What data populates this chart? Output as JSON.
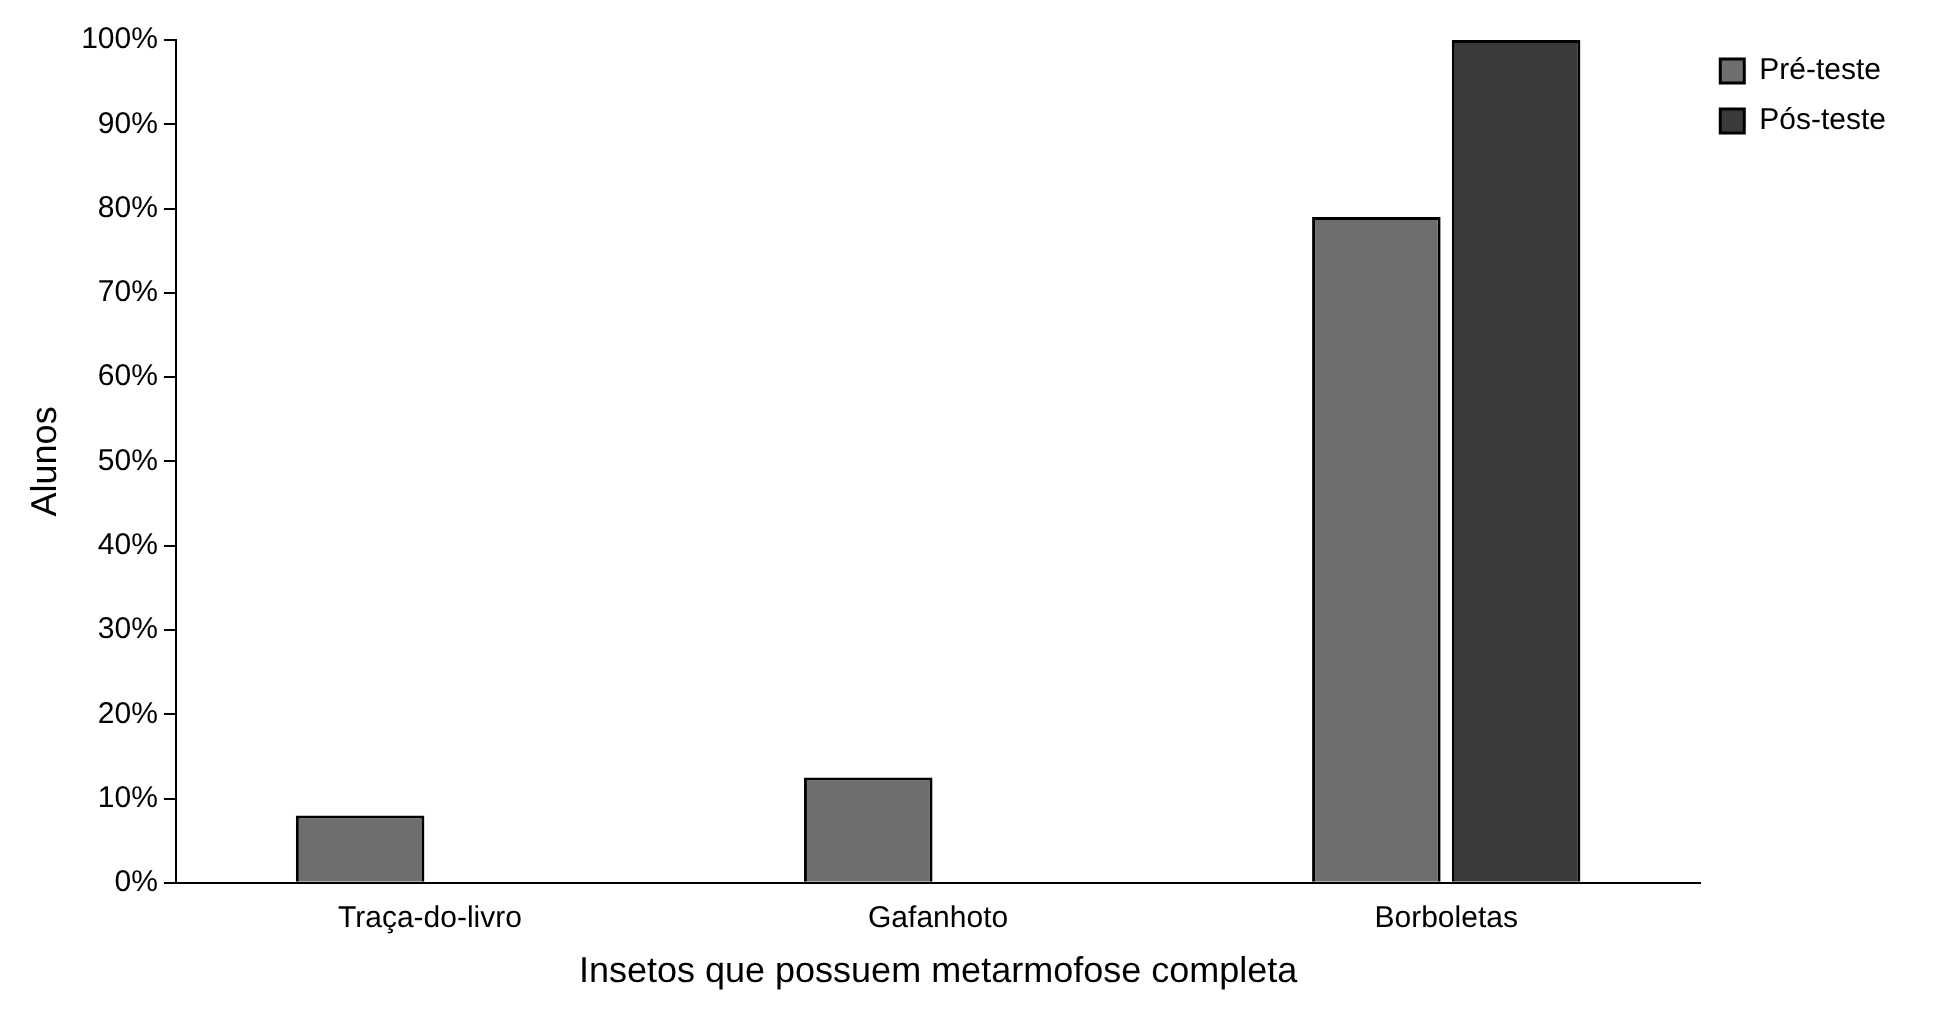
{
  "chart_data": {
    "type": "bar",
    "xlabel": "Insetos que possuem metarmofose completa",
    "ylabel": "Alunos",
    "categories": [
      "Traça-do-livro",
      "Gafanhoto",
      "Borboletas"
    ],
    "series": [
      {
        "name": "Pré-teste",
        "color": "#6e6e6e",
        "values": [
          8,
          12.5,
          79
        ]
      },
      {
        "name": "Pós-teste",
        "color": "#3a3a3a",
        "values": [
          0,
          0,
          100
        ]
      }
    ],
    "ylim": [
      0,
      100
    ],
    "yticks": [
      {
        "value": 0,
        "label": "0%"
      },
      {
        "value": 10,
        "label": "10%"
      },
      {
        "value": 20,
        "label": "20%"
      },
      {
        "value": 30,
        "label": "30%"
      },
      {
        "value": 40,
        "label": "40%"
      },
      {
        "value": 50,
        "label": "50%"
      },
      {
        "value": 60,
        "label": "60%"
      },
      {
        "value": 70,
        "label": "70%"
      },
      {
        "value": 80,
        "label": "80%"
      },
      {
        "value": 90,
        "label": "90%"
      },
      {
        "value": 100,
        "label": "100%"
      }
    ],
    "grid": false,
    "legend": "top right"
  }
}
